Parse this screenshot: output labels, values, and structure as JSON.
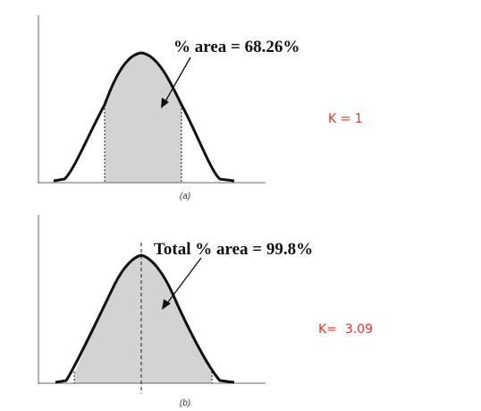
{
  "panel_a": {
    "annotation": "% area = 68.26%",
    "caption": "(a)",
    "k_label": "K = 1"
  },
  "panel_b": {
    "annotation": "Total % area = 99.8%",
    "caption": "(b)",
    "k_label": "K=  3.09"
  },
  "colors": {
    "curve": "#111111",
    "shaded_area": "#d3d3d3",
    "k_label_text": "#e8322a"
  }
}
